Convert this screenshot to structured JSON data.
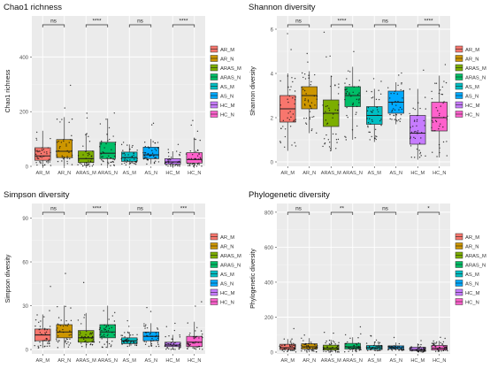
{
  "chart_data": [
    {
      "type": "box",
      "title": "Chao1 richness",
      "xlabel": "",
      "ylabel": "Chao1 richness",
      "ylim": [
        0,
        550
      ],
      "yticks": [
        0,
        200,
        400
      ],
      "grid": true,
      "legend_position": "right",
      "categories": [
        "AR_M",
        "AR_N",
        "ARAS_M",
        "ARAS_N",
        "AS_M",
        "AS_N",
        "HC_M",
        "HC_N"
      ],
      "boxes": [
        {
          "min": 0,
          "q1": 22,
          "median": 38,
          "q3": 68,
          "max": 130
        },
        {
          "min": 0,
          "q1": 32,
          "median": 55,
          "q3": 98,
          "max": 180
        },
        {
          "min": 0,
          "q1": 14,
          "median": 28,
          "q3": 56,
          "max": 120
        },
        {
          "min": 0,
          "q1": 28,
          "median": 48,
          "q3": 88,
          "max": 175
        },
        {
          "min": 5,
          "q1": 18,
          "median": 32,
          "q3": 52,
          "max": 80
        },
        {
          "min": 8,
          "q1": 28,
          "median": 42,
          "q3": 70,
          "max": 100
        },
        {
          "min": 0,
          "q1": 8,
          "median": 16,
          "q3": 28,
          "max": 55
        },
        {
          "min": 0,
          "q1": 12,
          "median": 25,
          "q3": 50,
          "max": 105
        }
      ],
      "significance": [
        {
          "from": "AR_M",
          "to": "AR_N",
          "label": "ns"
        },
        {
          "from": "ARAS_M",
          "to": "ARAS_N",
          "label": "****"
        },
        {
          "from": "AS_M",
          "to": "AS_N",
          "label": "ns"
        },
        {
          "from": "HC_M",
          "to": "HC_N",
          "label": "****"
        }
      ]
    },
    {
      "type": "box",
      "title": "Shannon diversity",
      "xlabel": "",
      "ylabel": "Shannon diversity",
      "ylim": [
        -0.2,
        6.6
      ],
      "yticks": [
        0,
        2,
        4,
        6
      ],
      "grid": true,
      "legend_position": "right",
      "categories": [
        "AR_M",
        "AR_N",
        "ARAS_M",
        "ARAS_N",
        "AS_M",
        "AS_N",
        "HC_M",
        "HC_N"
      ],
      "boxes": [
        {
          "min": 0.5,
          "q1": 1.8,
          "median": 2.4,
          "q3": 3.0,
          "max": 4.0
        },
        {
          "min": 1.3,
          "q1": 2.4,
          "median": 3.0,
          "q3": 3.4,
          "max": 4.1
        },
        {
          "min": 0.5,
          "q1": 1.6,
          "median": 2.2,
          "q3": 2.8,
          "max": 3.9
        },
        {
          "min": 1.0,
          "q1": 2.5,
          "median": 3.0,
          "q3": 3.4,
          "max": 4.3
        },
        {
          "min": 0.9,
          "q1": 1.7,
          "median": 2.1,
          "q3": 2.5,
          "max": 3.3
        },
        {
          "min": 1.7,
          "q1": 2.2,
          "median": 2.7,
          "q3": 3.2,
          "max": 3.6
        },
        {
          "min": 0.1,
          "q1": 0.8,
          "median": 1.3,
          "q3": 2.1,
          "max": 3.3
        },
        {
          "min": 0.2,
          "q1": 1.4,
          "median": 2.0,
          "q3": 2.7,
          "max": 3.9
        }
      ],
      "significance": [
        {
          "from": "AR_M",
          "to": "AR_N",
          "label": "ns"
        },
        {
          "from": "ARAS_M",
          "to": "ARAS_N",
          "label": "****"
        },
        {
          "from": "AS_M",
          "to": "AS_N",
          "label": "ns"
        },
        {
          "from": "HC_M",
          "to": "HC_N",
          "label": "****"
        }
      ]
    },
    {
      "type": "box",
      "title": "Simpson diversity",
      "xlabel": "",
      "ylabel": "Simpson diversity",
      "ylim": [
        -3,
        100
      ],
      "yticks": [
        0,
        30,
        60,
        90
      ],
      "grid": true,
      "legend_position": "right",
      "categories": [
        "AR_M",
        "AR_N",
        "ARAS_M",
        "ARAS_N",
        "AS_M",
        "AS_N",
        "HC_M",
        "HC_N"
      ],
      "boxes": [
        {
          "min": 1,
          "q1": 6,
          "median": 10,
          "q3": 14,
          "max": 24
        },
        {
          "min": 1,
          "q1": 8,
          "median": 12,
          "q3": 17,
          "max": 30
        },
        {
          "min": 1,
          "q1": 5,
          "median": 8,
          "q3": 13,
          "max": 25
        },
        {
          "min": 1,
          "q1": 8,
          "median": 12,
          "q3": 17,
          "max": 30
        },
        {
          "min": 2,
          "q1": 4,
          "median": 6,
          "q3": 8,
          "max": 12
        },
        {
          "min": 2,
          "q1": 6,
          "median": 9,
          "q3": 12,
          "max": 18
        },
        {
          "min": 0,
          "q1": 2,
          "median": 3,
          "q3": 5,
          "max": 10
        },
        {
          "min": 0,
          "q1": 2,
          "median": 5,
          "q3": 9,
          "max": 19
        }
      ],
      "significance": [
        {
          "from": "AR_M",
          "to": "AR_N",
          "label": "ns"
        },
        {
          "from": "ARAS_M",
          "to": "ARAS_N",
          "label": "****"
        },
        {
          "from": "AS_M",
          "to": "AS_N",
          "label": "ns"
        },
        {
          "from": "HC_M",
          "to": "HC_N",
          "label": "***"
        }
      ]
    },
    {
      "type": "box",
      "title": "Phylogenetic diversity",
      "xlabel": "",
      "ylabel": "Phylogenetic diversity",
      "ylim": [
        -10,
        850
      ],
      "yticks": [
        0,
        200,
        400,
        600,
        800
      ],
      "grid": true,
      "legend_position": "right",
      "categories": [
        "AR_M",
        "AR_N",
        "ARAS_M",
        "ARAS_N",
        "AS_M",
        "AS_N",
        "HC_M",
        "HC_N"
      ],
      "boxes": [
        {
          "min": 0,
          "q1": 15,
          "median": 25,
          "q3": 45,
          "max": 75
        },
        {
          "min": 0,
          "q1": 18,
          "median": 30,
          "q3": 48,
          "max": 80
        },
        {
          "min": 0,
          "q1": 12,
          "median": 22,
          "q3": 40,
          "max": 70
        },
        {
          "min": 0,
          "q1": 18,
          "median": 30,
          "q3": 50,
          "max": 85
        },
        {
          "min": 5,
          "q1": 15,
          "median": 25,
          "q3": 38,
          "max": 60
        },
        {
          "min": 8,
          "q1": 18,
          "median": 26,
          "q3": 36,
          "max": 55
        },
        {
          "min": 0,
          "q1": 8,
          "median": 15,
          "q3": 28,
          "max": 50
        },
        {
          "min": 0,
          "q1": 12,
          "median": 22,
          "q3": 38,
          "max": 65
        }
      ],
      "significance": [
        {
          "from": "AR_M",
          "to": "AR_N",
          "label": "ns"
        },
        {
          "from": "ARAS_M",
          "to": "ARAS_N",
          "label": "**"
        },
        {
          "from": "AS_M",
          "to": "AS_N",
          "label": "ns"
        },
        {
          "from": "HC_M",
          "to": "HC_N",
          "label": "*"
        }
      ]
    }
  ],
  "legend_colors": [
    "#f8766d",
    "#cd9600",
    "#7cae00",
    "#00be67",
    "#00bfc4",
    "#00a9ff",
    "#c77cff",
    "#ff61cc"
  ]
}
